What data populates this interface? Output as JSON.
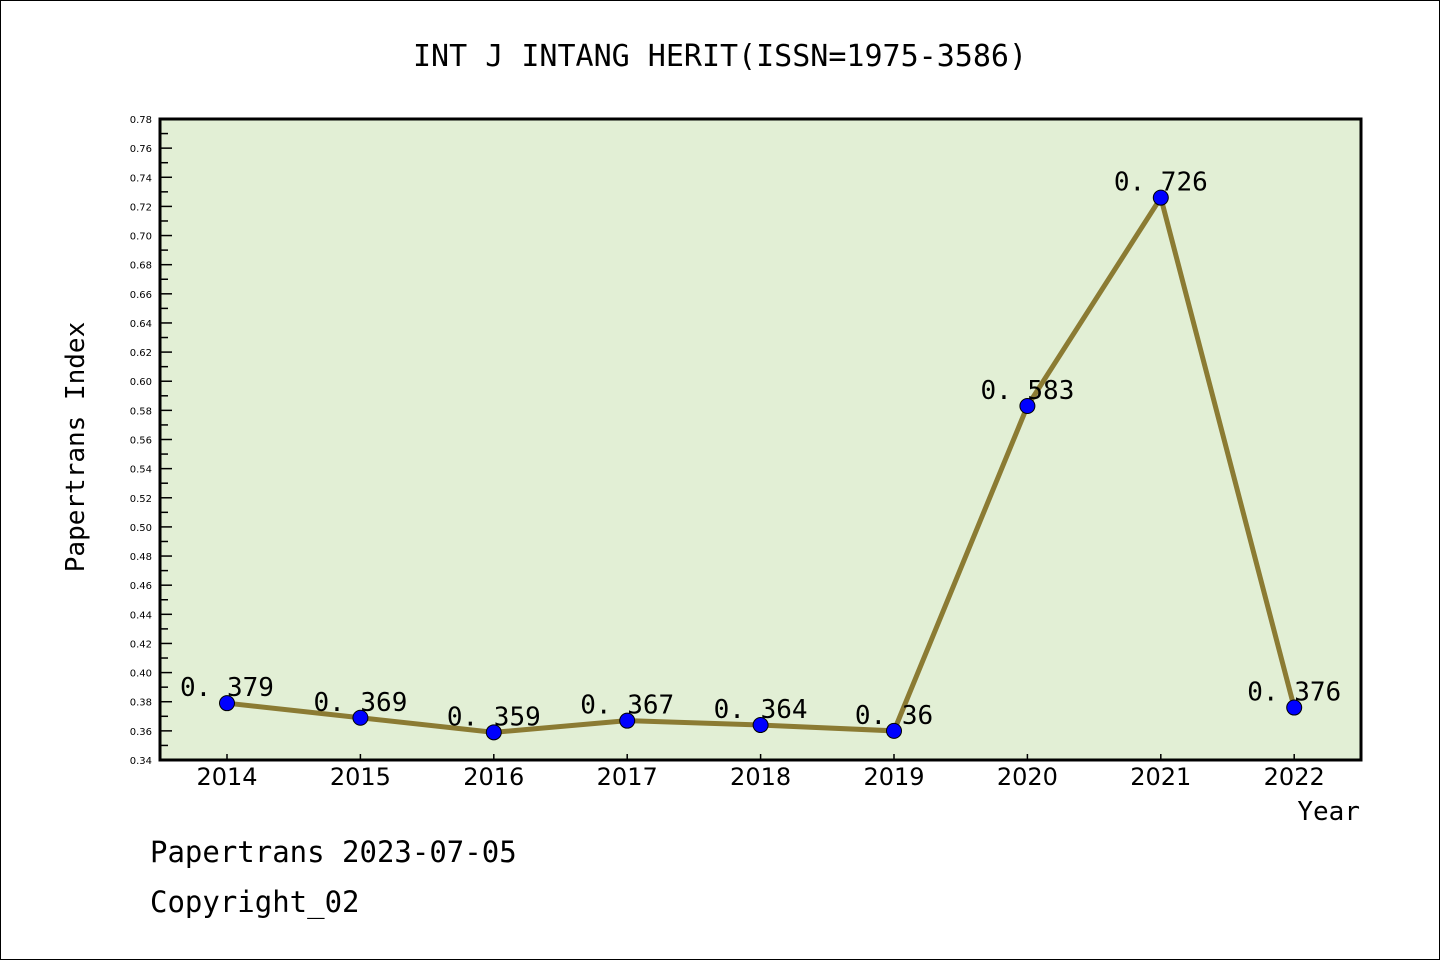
{
  "chart_data": {
    "type": "line",
    "title": "INT J INTANG HERIT(ISSN=1975-3586)",
    "xlabel": "Year",
    "ylabel": "Papertrans Index",
    "x": [
      "2014",
      "2015",
      "2016",
      "2017",
      "2018",
      "2019",
      "2020",
      "2021",
      "2022"
    ],
    "values": [
      0.379,
      0.369,
      0.359,
      0.367,
      0.364,
      0.36,
      0.583,
      0.726,
      0.376
    ],
    "data_labels": [
      "0.379",
      "0.369",
      "0.359",
      "0.367",
      "0.364",
      "0.36",
      "0.583",
      "0.726",
      "0.376"
    ],
    "ylim": [
      0.34,
      0.78
    ],
    "ytick_step": 0.02,
    "grid": false,
    "colors": {
      "background": "#E2EFD5",
      "line": "#8B7B33",
      "marker": "#0000FF"
    }
  },
  "footer": {
    "line1": "Papertrans 2023-07-05",
    "line2": "Copyright_02"
  }
}
